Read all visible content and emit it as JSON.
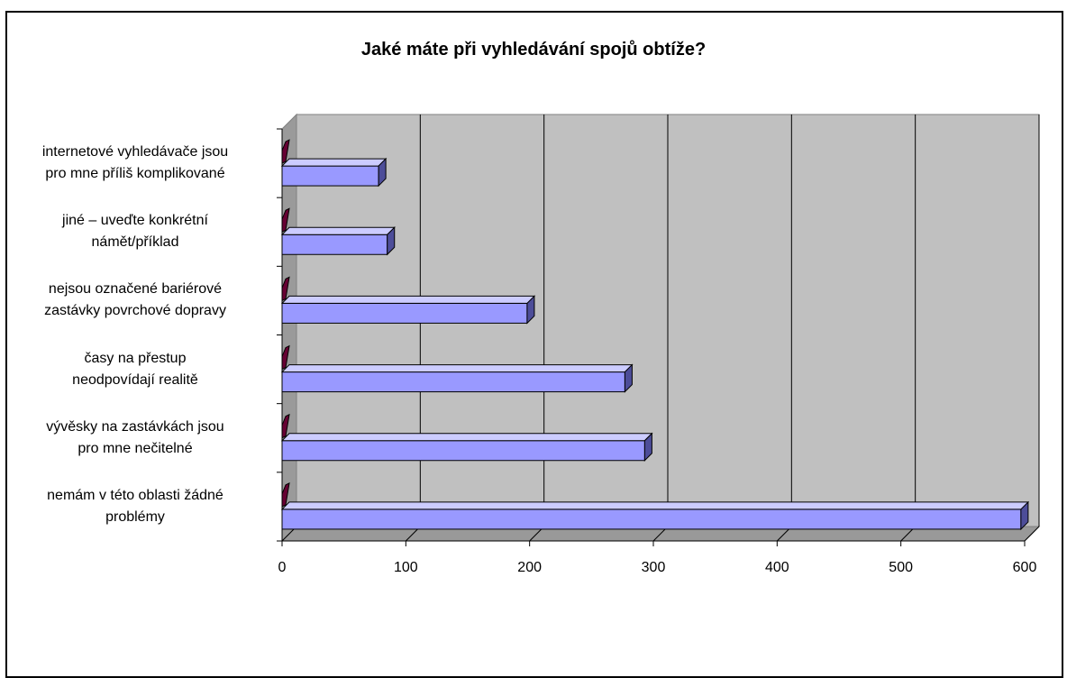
{
  "chart_data": {
    "type": "bar",
    "orientation": "horizontal",
    "title": "Jaké máte při vyhledávání spojů obtíže?",
    "categories": [
      "nemám v této oblasti žádné problémy",
      "vývěsky na zastávkách jsou pro mne nečitelné",
      "časy na přestup neodpovídají realitě",
      "nejsou označené bariérové zastávky povrchové dopravy",
      "jiné – uveďte konkrétní námět/příklad",
      "internetové vyhledávače jsou pro mne příliš komplikované"
    ],
    "category_lines": [
      [
        "nemám v této oblasti žádné",
        "problémy"
      ],
      [
        "vývěsky na zastávkách jsou",
        "pro mne nečitelné"
      ],
      [
        "časy na přestup",
        "neodpovídají realitě"
      ],
      [
        "nejsou označené bariérové",
        "zastávky povrchové dopravy"
      ],
      [
        "jiné – uveďte konkrétní",
        "námět/příklad"
      ],
      [
        "internetové vyhledávače jsou",
        "pro mne příliš komplikované"
      ]
    ],
    "series": [
      {
        "values": [
          597,
          293,
          277,
          198,
          85,
          78
        ]
      },
      {
        "values": [
          0,
          0,
          0,
          0,
          0,
          0
        ]
      }
    ],
    "xlim": [
      0,
      600
    ],
    "xticks": [
      "0",
      "100",
      "200",
      "300",
      "400",
      "500",
      "600"
    ],
    "grid": true,
    "legend": "none",
    "colors": {
      "bar_face": "#9999ff",
      "bar_top": "#ccccff",
      "bar_side": "#4d4d99",
      "series2": "#660033",
      "plot_wall": "#c0c0c0",
      "floor": "#999999"
    }
  }
}
